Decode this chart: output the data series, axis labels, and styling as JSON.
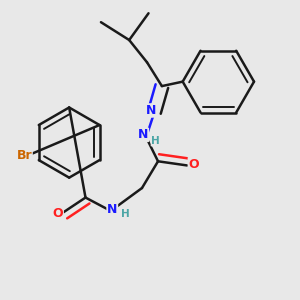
{
  "background_color": "#e8e8e8",
  "bond_color": "#1a1a1a",
  "bond_width": 1.8,
  "atom_colors": {
    "N": "#1a1aff",
    "O": "#ff2020",
    "Br": "#cc6600",
    "H": "#4da6a6"
  },
  "font_size_atoms": 9,
  "font_size_small": 7.5
}
